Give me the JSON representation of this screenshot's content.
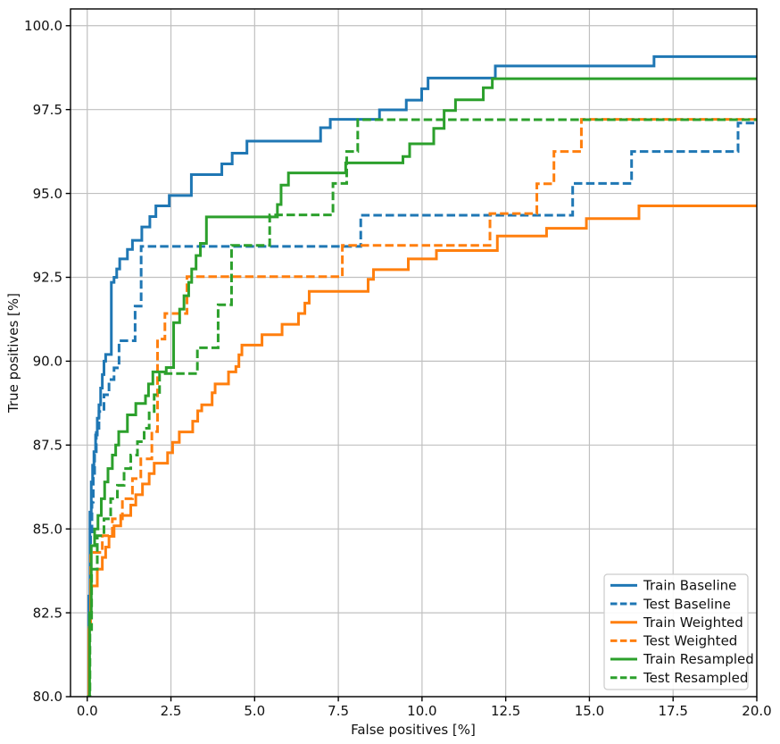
{
  "chart_data": {
    "type": "line",
    "subtype": "roc-step-curves",
    "title": "",
    "xlabel": "False positives [%]",
    "ylabel": "True positives [%]",
    "xlim": [
      -0.5,
      20.0
    ],
    "ylim": [
      80.0,
      100.5
    ],
    "x_ticks": [
      0.0,
      2.5,
      5.0,
      7.5,
      10.0,
      12.5,
      15.0,
      17.5,
      20.0
    ],
    "y_ticks": [
      80.0,
      82.5,
      85.0,
      87.5,
      90.0,
      92.5,
      95.0,
      97.5,
      100.0
    ],
    "grid": true,
    "grid_color": "#c0c0c0",
    "spine_color": "#000000",
    "background_color": "#ffffff",
    "legend_position": "lower right",
    "line_style": "step-post",
    "series": [
      {
        "name": "Train Baseline",
        "color": "#1f77b4",
        "dashed": false,
        "points": [
          [
            0.0,
            80.0
          ],
          [
            0.05,
            83.0
          ],
          [
            0.08,
            85.5
          ],
          [
            0.12,
            86.4
          ],
          [
            0.16,
            86.9
          ],
          [
            0.2,
            87.3
          ],
          [
            0.25,
            87.8
          ],
          [
            0.3,
            88.3
          ],
          [
            0.35,
            88.7
          ],
          [
            0.4,
            89.2
          ],
          [
            0.45,
            89.6
          ],
          [
            0.5,
            90.0
          ],
          [
            0.55,
            90.2
          ],
          [
            0.72,
            92.35
          ],
          [
            0.8,
            92.5
          ],
          [
            0.88,
            92.75
          ],
          [
            0.97,
            93.05
          ],
          [
            1.2,
            93.33
          ],
          [
            1.35,
            93.6
          ],
          [
            1.63,
            94.0
          ],
          [
            1.87,
            94.31
          ],
          [
            2.05,
            94.63
          ],
          [
            2.45,
            94.94
          ],
          [
            3.11,
            95.56
          ],
          [
            4.02,
            95.88
          ],
          [
            4.33,
            96.2
          ],
          [
            4.77,
            96.56
          ],
          [
            6.97,
            96.96
          ],
          [
            7.26,
            97.21
          ],
          [
            8.73,
            97.49
          ],
          [
            9.53,
            97.78
          ],
          [
            9.99,
            98.12
          ],
          [
            10.18,
            98.44
          ],
          [
            12.19,
            98.8
          ],
          [
            16.93,
            99.08
          ]
        ]
      },
      {
        "name": "Test Baseline",
        "color": "#1f77b4",
        "dashed": true,
        "points": [
          [
            0.0,
            80.0
          ],
          [
            0.06,
            82.5
          ],
          [
            0.1,
            84.8
          ],
          [
            0.14,
            85.8
          ],
          [
            0.18,
            86.6
          ],
          [
            0.22,
            87.3
          ],
          [
            0.27,
            88.0
          ],
          [
            0.35,
            88.5
          ],
          [
            0.5,
            89.0
          ],
          [
            0.65,
            89.45
          ],
          [
            0.8,
            89.8
          ],
          [
            0.95,
            90.61
          ],
          [
            1.43,
            91.64
          ],
          [
            1.61,
            93.42
          ],
          [
            8.17,
            94.35
          ],
          [
            14.5,
            95.3
          ],
          [
            16.26,
            96.25
          ],
          [
            19.44,
            97.1
          ]
        ]
      },
      {
        "name": "Train Weighted",
        "color": "#ff7f0e",
        "dashed": false,
        "points": [
          [
            0.0,
            80.0
          ],
          [
            0.05,
            82.0
          ],
          [
            0.1,
            83.3
          ],
          [
            0.3,
            83.8
          ],
          [
            0.45,
            84.15
          ],
          [
            0.55,
            84.46
          ],
          [
            0.65,
            84.78
          ],
          [
            0.8,
            85.09
          ],
          [
            1.0,
            85.4
          ],
          [
            1.3,
            85.71
          ],
          [
            1.45,
            86.02
          ],
          [
            1.65,
            86.34
          ],
          [
            1.85,
            86.65
          ],
          [
            2.0,
            86.96
          ],
          [
            2.4,
            87.27
          ],
          [
            2.55,
            87.58
          ],
          [
            2.75,
            87.89
          ],
          [
            3.15,
            88.21
          ],
          [
            3.3,
            88.52
          ],
          [
            3.42,
            88.7
          ],
          [
            3.73,
            89.06
          ],
          [
            3.82,
            89.32
          ],
          [
            4.22,
            89.68
          ],
          [
            4.44,
            89.84
          ],
          [
            4.53,
            90.19
          ],
          [
            4.62,
            90.48
          ],
          [
            5.22,
            90.79
          ],
          [
            5.82,
            91.1
          ],
          [
            6.31,
            91.42
          ],
          [
            6.5,
            91.73
          ],
          [
            6.63,
            92.08
          ],
          [
            8.39,
            92.44
          ],
          [
            8.55,
            92.73
          ],
          [
            9.59,
            93.05
          ],
          [
            10.43,
            93.3
          ],
          [
            12.25,
            93.73
          ],
          [
            13.72,
            93.96
          ],
          [
            14.91,
            94.25
          ],
          [
            16.48,
            94.63
          ]
        ]
      },
      {
        "name": "Test Weighted",
        "color": "#ff7f0e",
        "dashed": true,
        "points": [
          [
            0.0,
            80.0
          ],
          [
            0.06,
            82.2
          ],
          [
            0.1,
            84.3
          ],
          [
            0.45,
            84.8
          ],
          [
            0.75,
            85.3
          ],
          [
            1.05,
            85.9
          ],
          [
            1.35,
            86.5
          ],
          [
            1.6,
            87.09
          ],
          [
            1.93,
            87.9
          ],
          [
            2.1,
            90.66
          ],
          [
            2.32,
            91.42
          ],
          [
            2.98,
            92.52
          ],
          [
            7.62,
            93.45
          ],
          [
            12.03,
            94.4
          ],
          [
            13.43,
            95.29
          ],
          [
            13.94,
            96.25
          ],
          [
            14.76,
            97.21
          ]
        ]
      },
      {
        "name": "Train Resampled",
        "color": "#2ca02c",
        "dashed": false,
        "points": [
          [
            0.0,
            80.0
          ],
          [
            0.07,
            82.5
          ],
          [
            0.12,
            84.5
          ],
          [
            0.22,
            85.0
          ],
          [
            0.32,
            85.4
          ],
          [
            0.42,
            85.9
          ],
          [
            0.52,
            86.4
          ],
          [
            0.62,
            86.8
          ],
          [
            0.75,
            87.2
          ],
          [
            0.85,
            87.5
          ],
          [
            0.94,
            87.9
          ],
          [
            1.2,
            88.4
          ],
          [
            1.45,
            88.74
          ],
          [
            1.74,
            88.97
          ],
          [
            1.83,
            89.32
          ],
          [
            1.96,
            89.68
          ],
          [
            2.36,
            89.81
          ],
          [
            2.58,
            91.15
          ],
          [
            2.76,
            91.55
          ],
          [
            2.89,
            91.95
          ],
          [
            3.03,
            92.35
          ],
          [
            3.12,
            92.75
          ],
          [
            3.25,
            93.15
          ],
          [
            3.38,
            93.51
          ],
          [
            3.56,
            94.3
          ],
          [
            5.68,
            94.67
          ],
          [
            5.79,
            95.25
          ],
          [
            6.01,
            95.61
          ],
          [
            7.72,
            95.91
          ],
          [
            9.43,
            96.1
          ],
          [
            9.63,
            96.48
          ],
          [
            10.35,
            96.94
          ],
          [
            10.66,
            97.47
          ],
          [
            11.0,
            97.79
          ],
          [
            11.83,
            98.15
          ],
          [
            12.1,
            98.42
          ]
        ]
      },
      {
        "name": "Test Resampled",
        "color": "#2ca02c",
        "dashed": true,
        "points": [
          [
            0.0,
            80.0
          ],
          [
            0.08,
            82.0
          ],
          [
            0.13,
            83.8
          ],
          [
            0.3,
            84.8
          ],
          [
            0.5,
            85.3
          ],
          [
            0.7,
            85.9
          ],
          [
            0.9,
            86.3
          ],
          [
            1.1,
            86.8
          ],
          [
            1.3,
            87.2
          ],
          [
            1.5,
            87.6
          ],
          [
            1.7,
            88.0
          ],
          [
            1.85,
            88.5
          ],
          [
            2.0,
            89.0
          ],
          [
            2.16,
            89.63
          ],
          [
            3.29,
            90.4
          ],
          [
            3.91,
            91.68
          ],
          [
            4.31,
            93.45
          ],
          [
            5.45,
            94.36
          ],
          [
            7.34,
            95.3
          ],
          [
            7.75,
            96.25
          ],
          [
            8.08,
            97.2
          ]
        ]
      }
    ]
  }
}
